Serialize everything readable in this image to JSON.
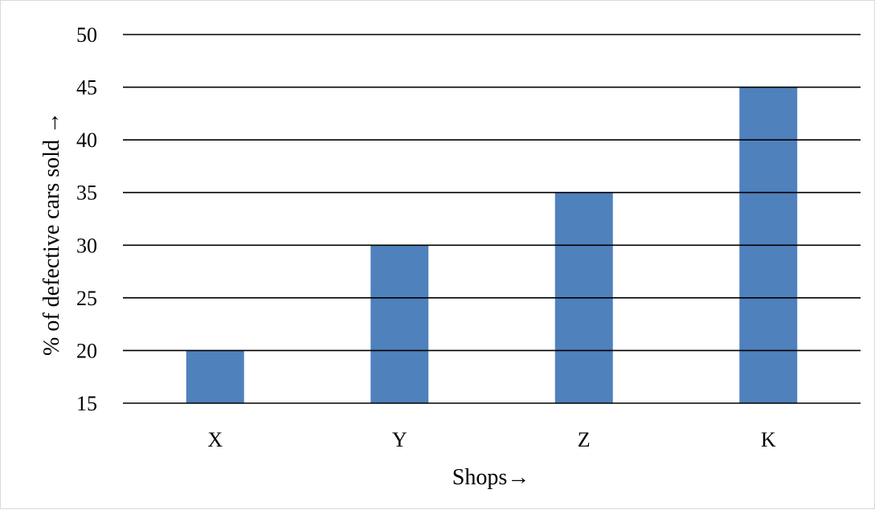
{
  "chart_data": {
    "type": "bar",
    "title": "",
    "xlabel": "Shops→",
    "ylabel": "% of defective cars sold →",
    "categories": [
      "X",
      "Y",
      "Z",
      "K"
    ],
    "values": [
      20,
      30,
      35,
      45
    ],
    "ylim": [
      15,
      50
    ],
    "yticks": [
      15,
      20,
      25,
      30,
      35,
      40,
      45,
      50
    ],
    "grid": true,
    "legend": "none",
    "bar_color": "#4f81bd",
    "grid_color": "#000000"
  }
}
